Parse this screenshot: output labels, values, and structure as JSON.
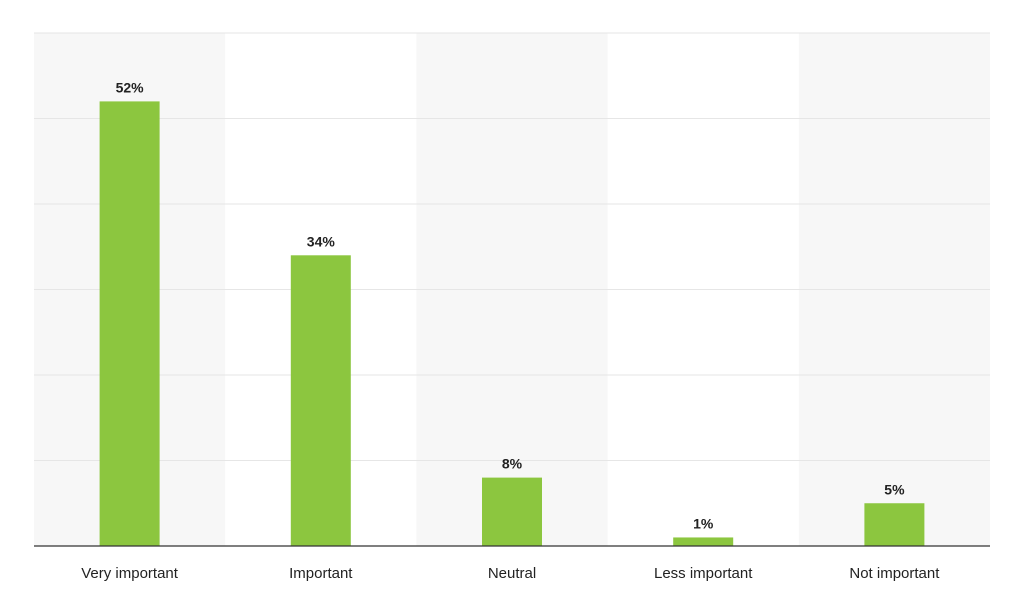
{
  "chart_data": {
    "type": "bar",
    "categories": [
      "Very important",
      "Important",
      "Neutral",
      "Less important",
      "Not important"
    ],
    "values": [
      52,
      34,
      8,
      1,
      5
    ],
    "value_labels": [
      "52%",
      "34%",
      "8%",
      "1%",
      "5%"
    ],
    "title": "",
    "xlabel": "",
    "ylabel": "",
    "ylim": [
      0,
      60
    ],
    "grid": true,
    "legend": "none",
    "colors": {
      "bar": "#8cc63f",
      "band": "#f7f7f7",
      "gridline": "#e6e6e6",
      "axis": "#333333",
      "text": "#222222"
    }
  }
}
